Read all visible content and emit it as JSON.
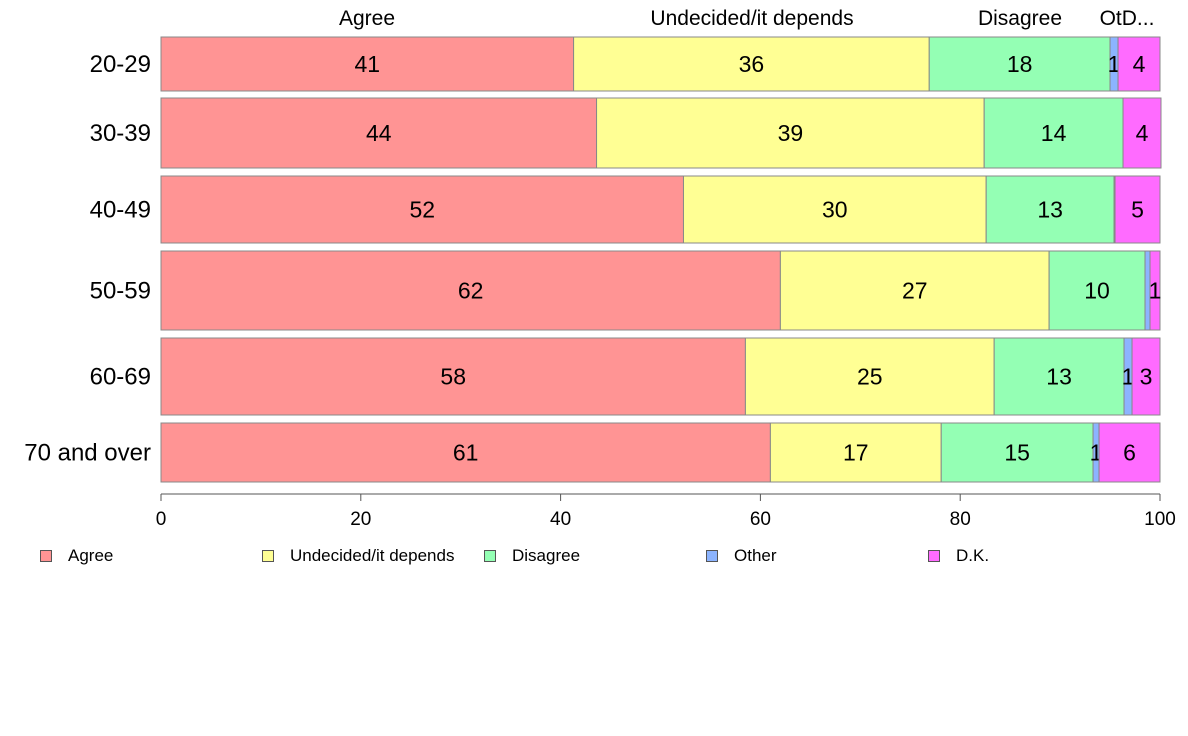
{
  "chart_data": {
    "type": "bar",
    "orientation": "horizontal",
    "stacked": true,
    "categories": [
      "20-29",
      "30-39",
      "40-49",
      "50-59",
      "60-69",
      "70 and over"
    ],
    "series": [
      {
        "name": "Agree",
        "color": "#ff9494",
        "values": [
          41.3,
          43.6,
          52.3,
          62.0,
          58.5,
          61.0
        ]
      },
      {
        "name": "Undecided/it depends",
        "color": "#ffff94",
        "values": [
          35.6,
          38.8,
          30.3,
          26.9,
          24.9,
          17.1
        ]
      },
      {
        "name": "Disagree",
        "color": "#94ffb4",
        "values": [
          18.1,
          13.9,
          12.8,
          9.6,
          13.0,
          15.2
        ]
      },
      {
        "name": "Other",
        "color": "#8cb4ff",
        "values": [
          0.8,
          0.0,
          0.1,
          0.5,
          0.8,
          0.6
        ]
      },
      {
        "name": "D.K.",
        "color": "#ff6bff",
        "values": [
          4.2,
          3.8,
          4.5,
          1.0,
          2.8,
          6.1
        ]
      }
    ],
    "labels": [
      [
        "41",
        "36",
        "18",
        "1",
        "4"
      ],
      [
        "44",
        "39",
        "14",
        "",
        "4"
      ],
      [
        "52",
        "30",
        "13",
        "",
        "5"
      ],
      [
        "62",
        "27",
        "10",
        "",
        "1"
      ],
      [
        "58",
        "25",
        "13",
        "1",
        "3"
      ],
      [
        "61",
        "17",
        "15",
        "1",
        "6"
      ]
    ],
    "top_labels": [
      "Agree",
      "Undecided/it depends",
      "Disagree",
      "OtD..."
    ],
    "xlim": [
      0,
      100
    ],
    "xticks": [
      0,
      20,
      40,
      60,
      80,
      100
    ],
    "grid": false,
    "legend_position": "bottom"
  },
  "legend": [
    {
      "label": "Agree",
      "color": "#ff9494"
    },
    {
      "label": "Undecided/it depends",
      "color": "#ffff94"
    },
    {
      "label": "Disagree",
      "color": "#94ffb4"
    },
    {
      "label": "Other",
      "color": "#8cb4ff"
    },
    {
      "label": "D.K.",
      "color": "#ff6bff"
    }
  ]
}
